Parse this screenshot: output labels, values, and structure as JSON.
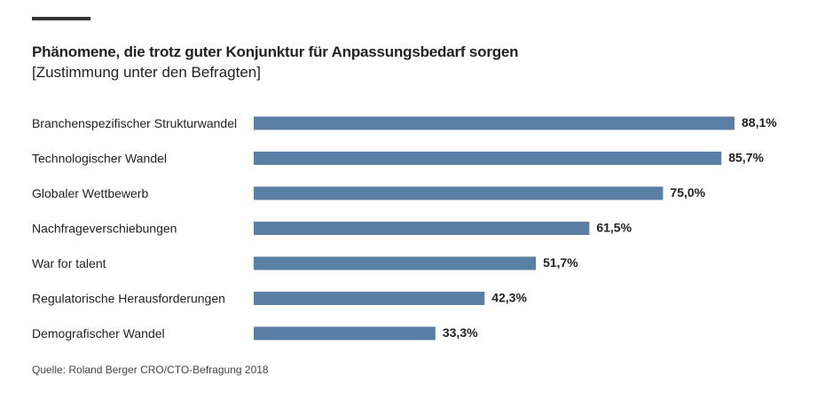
{
  "chart_data": {
    "type": "bar",
    "orientation": "horizontal",
    "title": "Phänomene, die trotz guter Konjunktur für Anpassungsbedarf sorgen",
    "subtitle": "[Zustimmung unter den Befragten]",
    "categories": [
      "Branchenspezifischer Strukturwandel",
      "Technologischer Wandel",
      "Globaler Wettbewerb",
      "Nachfrageverschiebungen",
      "War for talent",
      "Regulatorische Herausforderungen",
      "Demografischer Wandel"
    ],
    "values": [
      88.1,
      85.7,
      75.0,
      61.5,
      51.7,
      42.3,
      33.3
    ],
    "value_labels": [
      "88,1%",
      "85,7%",
      "75,0%",
      "61,5%",
      "51,7%",
      "42,3%",
      "33,3%"
    ],
    "xlim": [
      0,
      100
    ],
    "unit": "%",
    "grid": false,
    "bar_color": "#5a7fa5",
    "source": "Quelle: Roland Berger CRO/CTO-Befragung 2018"
  }
}
